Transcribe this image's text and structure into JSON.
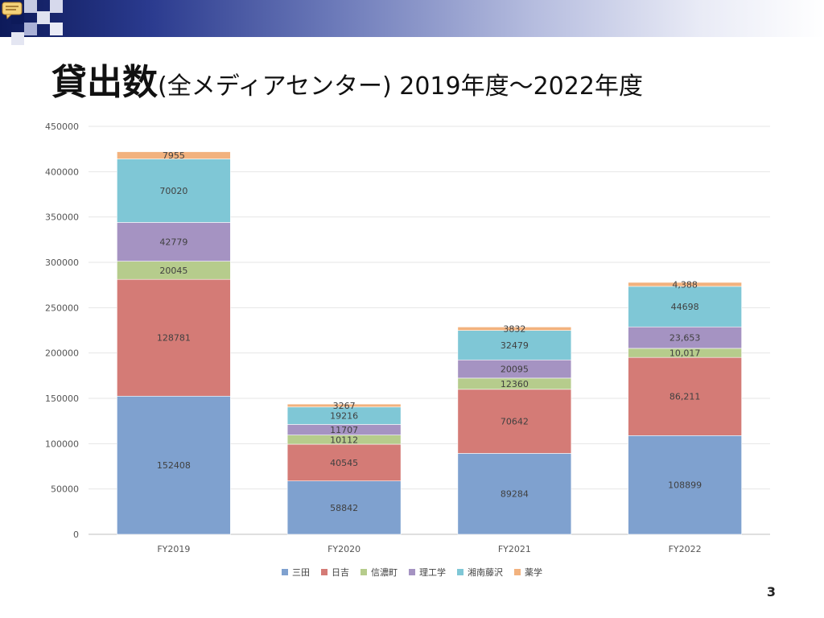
{
  "slide": {
    "title_main": "貸出数",
    "title_sub": "(全メディアセンター) 2019年度～2022年度",
    "page_number": "3"
  },
  "chart_data": {
    "type": "bar",
    "stacked": true,
    "categories": [
      "FY2019",
      "FY2020",
      "FY2021",
      "FY2022"
    ],
    "ylim": [
      0,
      450000
    ],
    "yticks": [
      "0",
      "50000",
      "100000",
      "150000",
      "200000",
      "250000",
      "300000",
      "350000",
      "400000",
      "450000"
    ],
    "ytick_values": [
      0,
      50000,
      100000,
      150000,
      200000,
      250000,
      300000,
      350000,
      400000,
      450000
    ],
    "grid": true,
    "legend_position": "bottom",
    "series": [
      {
        "name": "三田",
        "color": "#7fa1cf",
        "values": [
          152408,
          58842,
          89284,
          108899
        ],
        "labels": [
          "152408",
          "58842",
          "89284",
          "108899"
        ]
      },
      {
        "name": "日吉",
        "color": "#d47b76",
        "values": [
          128781,
          40545,
          70642,
          86211
        ],
        "labels": [
          "128781",
          "40545",
          "70642",
          "86,211"
        ]
      },
      {
        "name": "信濃町",
        "color": "#b6cc8c",
        "values": [
          20045,
          10112,
          12360,
          10017
        ],
        "labels": [
          "20045",
          "10112",
          "12360",
          "10,017"
        ]
      },
      {
        "name": "理工学",
        "color": "#a593c2",
        "values": [
          42779,
          11707,
          20095,
          23653
        ],
        "labels": [
          "42779",
          "11707",
          "20095",
          "23,653"
        ]
      },
      {
        "name": "湘南藤沢",
        "color": "#7fc7d6",
        "values": [
          70020,
          19216,
          32479,
          44698
        ],
        "labels": [
          "70020",
          "19216",
          "32479",
          "44698"
        ]
      },
      {
        "name": "薬学",
        "color": "#f2b27e",
        "values": [
          7955,
          3267,
          3832,
          4388
        ],
        "labels": [
          "7955",
          "3267",
          "3832",
          "4,388"
        ]
      }
    ]
  },
  "decor": {
    "band_colors": [
      "#0d1a5a",
      "#ffffff"
    ],
    "square_colors": [
      "#b8bdd9",
      "#dadded",
      "#8f97c3"
    ]
  }
}
